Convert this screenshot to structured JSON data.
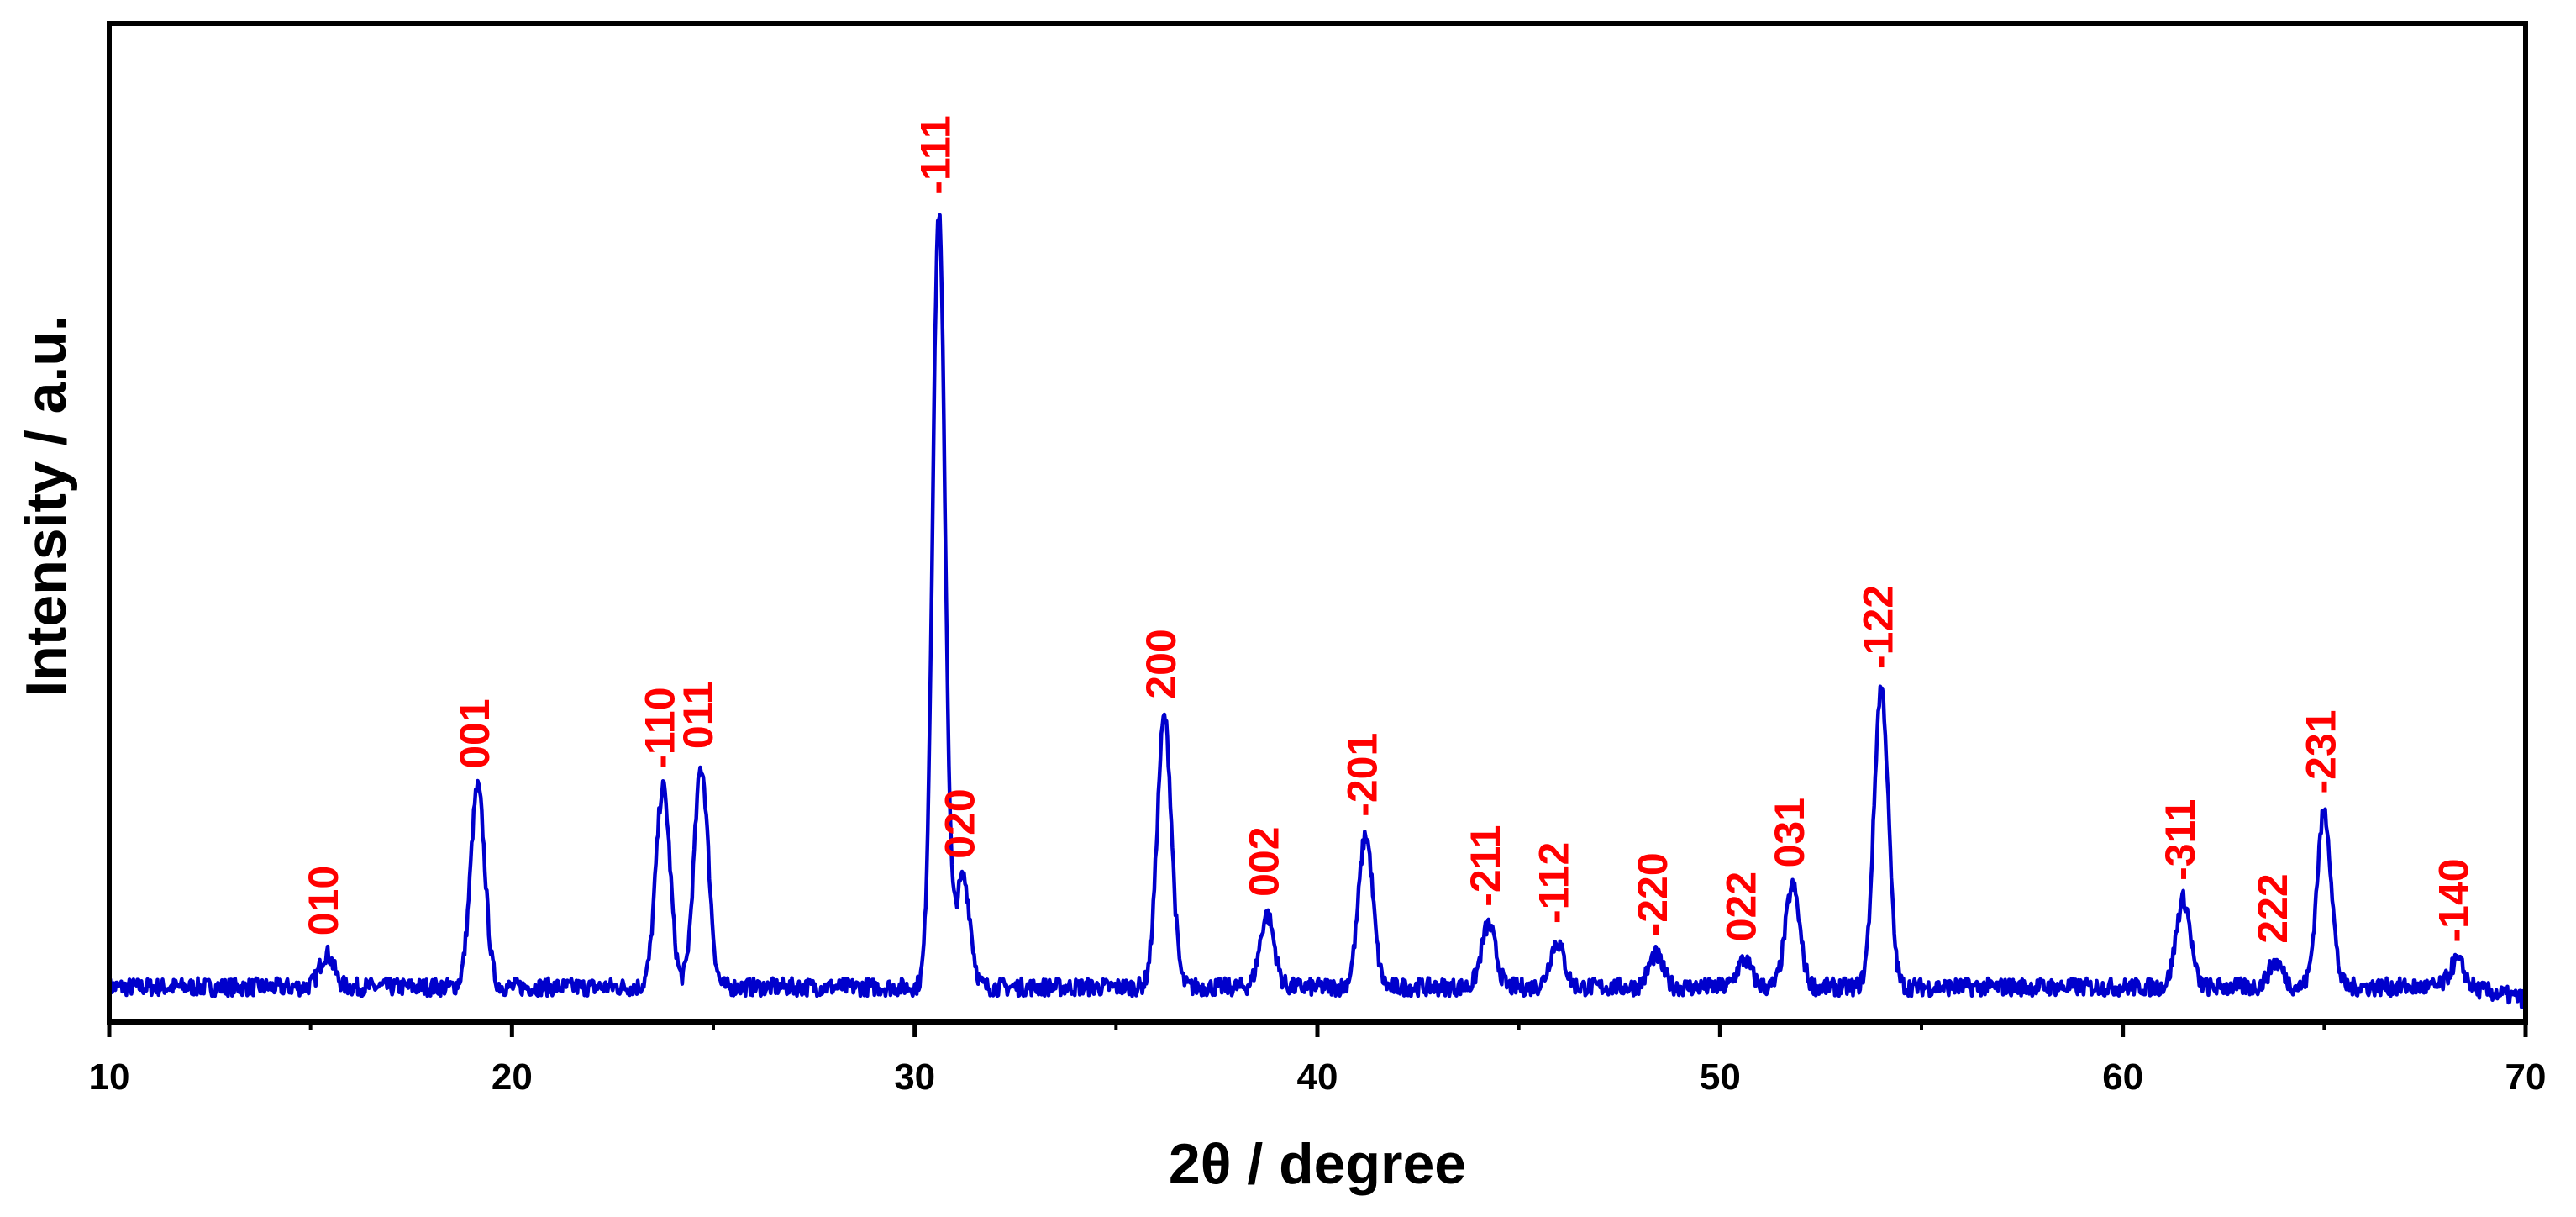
{
  "chart_data": {
    "type": "line",
    "title": "",
    "xlabel": "2θ / degree",
    "ylabel": "Intensity / a.u.",
    "xlim": [
      10,
      70
    ],
    "ylim": [
      0,
      1
    ],
    "x_ticks": [
      "10",
      "20",
      "30",
      "40",
      "50",
      "60",
      "70"
    ],
    "y_ticks": [],
    "grid": false,
    "legend": "none",
    "line_color": "#0000CC",
    "label_color": "#FF0000",
    "baseline": 0.035,
    "peaks": [
      {
        "label": "010",
        "x": 15.4,
        "y": 0.068
      },
      {
        "label": "001",
        "x": 19.15,
        "y": 0.235
      },
      {
        "label": "-110",
        "x": 23.75,
        "y": 0.235
      },
      {
        "label": "011",
        "x": 24.7,
        "y": 0.255
      },
      {
        "label": "-111",
        "x": 30.6,
        "y": 0.81
      },
      {
        "label": "020",
        "x": 31.2,
        "y": 0.145
      },
      {
        "label": "200",
        "x": 36.2,
        "y": 0.305
      },
      {
        "label": "002",
        "x": 38.75,
        "y": 0.107
      },
      {
        "label": "-201",
        "x": 41.2,
        "y": 0.187
      },
      {
        "label": "-211",
        "x": 44.25,
        "y": 0.097
      },
      {
        "label": "-112",
        "x": 45.95,
        "y": 0.08
      },
      {
        "label": "-220",
        "x": 48.4,
        "y": 0.067
      },
      {
        "label": "022",
        "x": 50.6,
        "y": 0.062
      },
      {
        "label": "031",
        "x": 51.8,
        "y": 0.136
      },
      {
        "label": "-122",
        "x": 54.0,
        "y": 0.335
      },
      {
        "label": "-311",
        "x": 61.5,
        "y": 0.123
      },
      {
        "label": "222",
        "x": 63.8,
        "y": 0.06
      },
      {
        "label": "-231",
        "x": 65.0,
        "y": 0.21
      },
      {
        "label": "-140",
        "x": 68.3,
        "y": 0.061
      }
    ]
  }
}
